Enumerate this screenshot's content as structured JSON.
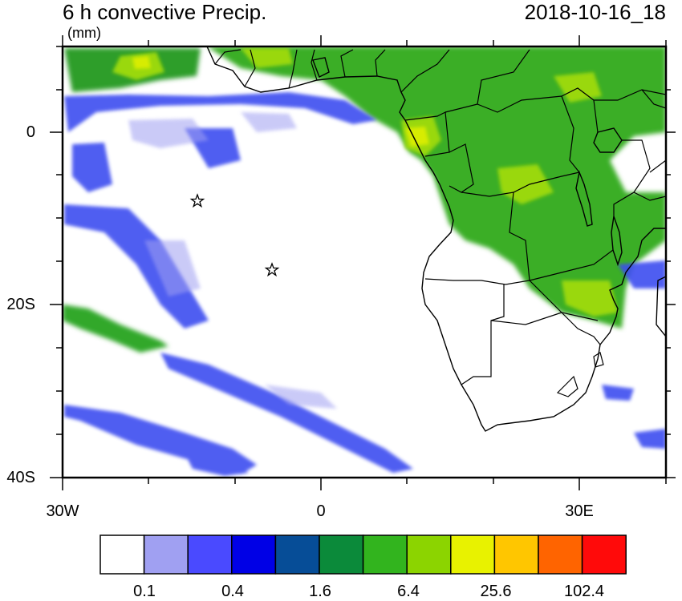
{
  "header": {
    "title": "6 h convective Precip.",
    "units": "(mm)",
    "datetime": "2018-10-16_18"
  },
  "axes": {
    "y_ticks": [
      "0",
      "20S",
      "40S"
    ],
    "x_ticks": [
      "30W",
      "0",
      "30E"
    ]
  },
  "colorbar": {
    "colors": [
      "#ffffff",
      "#a0a0f2",
      "#4a4aff",
      "#0000e6",
      "#064d97",
      "#0b8a3a",
      "#32b41e",
      "#8cd400",
      "#e8f200",
      "#ffc600",
      "#ff6400",
      "#ff0a0a"
    ],
    "labels": [
      "0.1",
      "0.4",
      "1.6",
      "6.4",
      "25.6",
      "102.4"
    ]
  },
  "map_markers": [
    {
      "name": "star-marker",
      "lon": -14.5,
      "lat": -8
    },
    {
      "name": "star-marker",
      "lon": -5.7,
      "lat": -16
    }
  ]
}
